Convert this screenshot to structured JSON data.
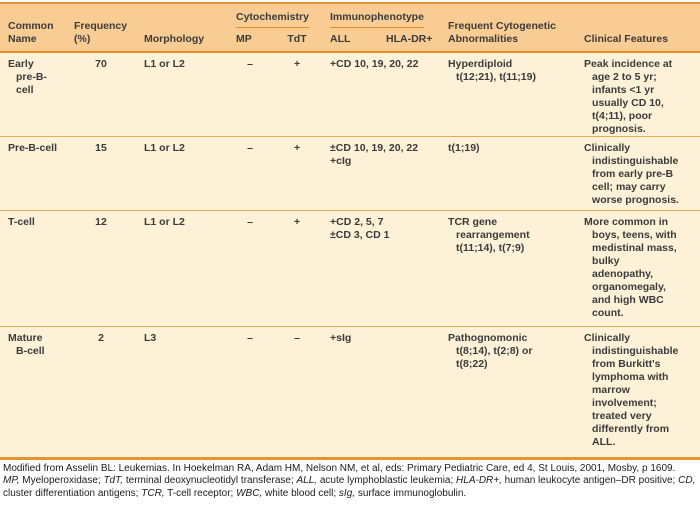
{
  "colors": {
    "header_bg": "#f8cc92",
    "row_bg": "#fdf1d7",
    "strong_rule": "#e5952f",
    "row_divider": "#ecac52",
    "text": "#3b3b3b"
  },
  "table": {
    "header": {
      "common_name": "Common\nName",
      "frequency": "Frequency\n(%)",
      "morphology": "Morphology",
      "cytochemistry": "Cytochemistry",
      "mp": "MP",
      "tdt": "TdT",
      "immunophenotype": "Immunophenotype",
      "all": "ALL",
      "hla_dr": "HLA-DR+",
      "cytogenetic": "Frequent Cytogenetic\nAbnormalities",
      "clinical": "Clinical Features"
    },
    "rows": [
      {
        "common_name": "Early\npre-B-cell",
        "frequency": "70",
        "morphology": "L1 or L2",
        "mp": "–",
        "tdt": "+",
        "immunophenotype": "+CD 10, 19, 20, 22",
        "cytogenetic": "Hyperdiploid\nt(12;21), t(11;19)",
        "clinical": "Peak incidence at\nage 2 to 5 yr;\ninfants <1 yr\nusually CD 10,\nt(4;11), poor\nprognosis."
      },
      {
        "common_name": "Pre-B-cell",
        "frequency": "15",
        "morphology": "L1 or L2",
        "mp": "–",
        "tdt": "+",
        "immunophenotype": "±CD 10, 19, 20, 22\n+cIg",
        "cytogenetic": "t(1;19)",
        "clinical": "Clinically\nindistinguishable\nfrom early pre-B\ncell; may carry\nworse prognosis."
      },
      {
        "common_name": "T-cell",
        "frequency": "12",
        "morphology": "L1 or L2",
        "mp": "–",
        "tdt": "+",
        "immunophenotype": "+CD 2, 5, 7\n±CD 3, CD 1",
        "cytogenetic": "TCR gene\nrearrangement\nt(11;14), t(7;9)",
        "clinical": "More common in\nboys, teens, with\nmedistinal mass,\nbulky\nadenopathy,\norganomegaly,\nand high WBC\ncount."
      },
      {
        "common_name": "Mature\nB-cell",
        "frequency": "2",
        "morphology": "L3",
        "mp": "–",
        "tdt": "–",
        "immunophenotype": "+sIg",
        "cytogenetic": "Pathognomonic\nt(8;14), t(2;8) or\nt(8;22)",
        "clinical": "Clinically\nindistinguishable\nfrom Burkitt's\nlymphoma with\nmarrow\ninvolvement;\ntreated very\ndifferently from\nALL."
      }
    ]
  },
  "footnotes": {
    "source": "Modified from Asselin BL: Leukemias. In Hoekelman RA, Adam HM, Nelson NM, et al, eds: Primary Pediatric Care, ed 4, St Louis, 2001, Mosby, p 1609.",
    "abbreviations": [
      {
        "term": "MP",
        "definition": "Myeloperoxidase"
      },
      {
        "term": "TdT",
        "definition": "terminal deoxynucleotidyl transferase"
      },
      {
        "term": "ALL",
        "definition": "acute lymphoblastic leukemia"
      },
      {
        "term": "HLA-DR+",
        "definition": "human leukocyte antigen–DR positive"
      },
      {
        "term": "CD",
        "definition": "cluster differentiation antigens"
      },
      {
        "term": "TCR",
        "definition": "T-cell receptor"
      },
      {
        "term": "WBC",
        "definition": "white blood cell"
      },
      {
        "term": "sIg",
        "definition": "surface immunoglobulin"
      }
    ]
  }
}
